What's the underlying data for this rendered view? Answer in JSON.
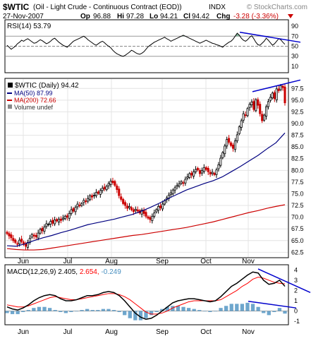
{
  "header": {
    "symbol": "$WTIC",
    "name": "(Oil - Light Crude - Continuous Contract (EOD))",
    "exchange": "INDX",
    "date": "27-Nov-2007",
    "op_label": "Op",
    "op": "96.88",
    "hi_label": "Hi",
    "hi": "97.28",
    "lo_label": "Lo",
    "lo": "94.21",
    "cl_label": "Cl",
    "cl": "94.42",
    "chg_label": "Chg",
    "chg": "-3.28 (-3.36%)",
    "chg_arrow": "down-triangle-icon",
    "brand": "© StockCharts.com"
  },
  "colors": {
    "price_up": "#000000",
    "price_down": "#cc0000",
    "ma50": "#000080",
    "ma200": "#cc0000",
    "trendline": "#0000cc",
    "macd_line": "#000000",
    "signal_line": "#ff0000",
    "histogram": "#4a90c0",
    "rsi_fill": "#2e8b57"
  },
  "chart_data": [
    {
      "type": "line",
      "panel": "RSI",
      "legend": {
        "label": "RSI(14)",
        "value": "53.79"
      },
      "ylim": [
        0,
        100
      ],
      "y_ticks": [
        "90",
        "70",
        "50",
        "30",
        "10"
      ],
      "reference_lines": [
        70,
        30
      ],
      "series": [
        {
          "name": "RSI(14)",
          "values": [
            52,
            48,
            44,
            47,
            50,
            55,
            58,
            62,
            60,
            63,
            65,
            62,
            59,
            56,
            57,
            60,
            63,
            61,
            58,
            55,
            57,
            60,
            64,
            66,
            62,
            58,
            55,
            52,
            50,
            48,
            52,
            56,
            60,
            62,
            64,
            66,
            68,
            70,
            67,
            63,
            60,
            57,
            54,
            52,
            55,
            58,
            60,
            57,
            53,
            50,
            47,
            42,
            38,
            35,
            33,
            31,
            30,
            32,
            35,
            38,
            42,
            40,
            37,
            35,
            34,
            36,
            39,
            44,
            49,
            52,
            55,
            58,
            60,
            62,
            64,
            66,
            68,
            65,
            63,
            60,
            62,
            64,
            66,
            68,
            70,
            72,
            70,
            68,
            66,
            64,
            62,
            60,
            58,
            56,
            58,
            60,
            62,
            60,
            58,
            56,
            55,
            53,
            52,
            50,
            48,
            52,
            55,
            58,
            60,
            64,
            70,
            76,
            72,
            66,
            62,
            60,
            63,
            68,
            71,
            65,
            58,
            53,
            52,
            56,
            60,
            66,
            62,
            57,
            52,
            55,
            60,
            65,
            63,
            58,
            53.79
          ]
        }
      ]
    },
    {
      "type": "candlestick",
      "panel": "Price",
      "legend": [
        {
          "label": "$WTIC (Daily)",
          "value": "94.42"
        },
        {
          "label": "MA(50)",
          "value": "87.99"
        },
        {
          "label": "MA(200)",
          "value": "72.66"
        },
        {
          "label": "Volume undef",
          "value": ""
        }
      ],
      "x_labels": [
        "Jun",
        "Jul",
        "Aug",
        "Sep",
        "Oct",
        "Nov"
      ],
      "ylim": [
        61.5,
        99.5
      ],
      "y_ticks": [
        "97.5",
        "95.0",
        "92.5",
        "90.0",
        "87.5",
        "85.0",
        "82.5",
        "80.0",
        "77.5",
        "75.0",
        "72.5",
        "70.0",
        "67.5",
        "65.0",
        "62.5"
      ],
      "series": [
        {
          "name": "$WTIC (Daily)",
          "values": [
            66.5,
            66.0,
            65.6,
            65.0,
            64.6,
            64.3,
            65.1,
            64.8,
            64.2,
            63.8,
            64.6,
            65.5,
            66.3,
            66.0,
            65.8,
            66.6,
            67.4,
            67.1,
            67.9,
            68.6,
            68.5,
            69.1,
            68.7,
            69.4,
            69.2,
            69.6,
            69.3,
            69.8,
            70.2,
            70.0,
            70.8,
            71.6,
            71.3,
            72.1,
            72.8,
            72.5,
            72.9,
            73.6,
            73.3,
            74.0,
            74.6,
            74.3,
            74.7,
            75.3,
            75.1,
            75.7,
            76.2,
            76.0,
            76.6,
            77.2,
            77.7,
            77.4,
            76.8,
            75.9,
            74.6,
            73.8,
            72.9,
            72.5,
            71.9,
            72.3,
            71.6,
            71.2,
            71.7,
            71.3,
            70.9,
            71.5,
            70.8,
            70.2,
            69.8,
            69.5,
            70.2,
            70.9,
            71.6,
            72.3,
            72.0,
            72.8,
            73.5,
            74.1,
            74.7,
            75.2,
            75.8,
            76.3,
            76.8,
            77.1,
            77.6,
            77.3,
            78.1,
            78.6,
            79.3,
            79.0,
            79.7,
            80.2,
            80.1,
            79.3,
            80.0,
            80.6,
            80.2,
            79.7,
            79.2,
            79.6,
            79.1,
            80.1,
            81.2,
            82.6,
            83.8,
            85.2,
            86.6,
            86.0,
            85.3,
            84.7,
            86.3,
            87.6,
            89.3,
            90.6,
            92.1,
            91.7,
            93.2,
            94.1,
            94.6,
            93.0,
            95.1,
            93.9,
            92.1,
            90.6,
            91.8,
            93.6,
            94.7,
            95.6,
            96.5,
            95.3,
            97.4,
            97.0,
            98.1,
            97.7,
            94.42
          ]
        },
        {
          "name": "MA(50)",
          "values": [
            63.9,
            63.8,
            64.3,
            65.0,
            65.6,
            66.1,
            66.7,
            67.2,
            67.8,
            68.4,
            68.8,
            69.2,
            69.6,
            70.1,
            70.6,
            71.3,
            72.1,
            73.0,
            74.0,
            74.9,
            75.8,
            76.5,
            77.2,
            77.8,
            78.6,
            79.7,
            80.8,
            82.0,
            83.2,
            84.6,
            85.9,
            87.99
          ]
        },
        {
          "name": "MA(200)",
          "values": [
            63.3,
            63.1,
            63.0,
            63.0,
            63.1,
            63.4,
            63.7,
            64.0,
            64.3,
            64.6,
            64.9,
            65.2,
            65.5,
            65.8,
            66.1,
            66.3,
            66.6,
            66.9,
            67.2,
            67.5,
            67.8,
            68.2,
            68.6,
            69.0,
            69.5,
            70.0,
            70.5,
            71.0,
            71.4,
            71.9,
            72.3,
            72.66
          ]
        }
      ]
    },
    {
      "type": "line",
      "panel": "MACD",
      "legend": {
        "label": "MACD(12,26,9)",
        "macd": "2.405",
        "signal": "2.654",
        "histogram": "-0.249"
      },
      "x_labels": [
        "Jun",
        "Jul",
        "Aug",
        "Sep",
        "Oct",
        "Nov"
      ],
      "ylim": [
        -1.2,
        4.3
      ],
      "y_ticks": [
        "4",
        "3",
        "2",
        "1",
        "0",
        "-1"
      ],
      "series": [
        {
          "name": "MACD",
          "values": [
            0.4,
            0.2,
            0.1,
            0.3,
            0.6,
            1.0,
            1.3,
            1.5,
            1.6,
            1.5,
            1.2,
            1.0,
            1.0,
            1.1,
            1.3,
            1.5,
            1.5,
            1.6,
            1.8,
            1.9,
            1.8,
            1.5,
            1.0,
            0.4,
            -0.2,
            -0.6,
            -0.8,
            -0.7,
            -0.4,
            0.0,
            0.4,
            0.8,
            1.0,
            1.1,
            1.2,
            1.2,
            1.1,
            1.0,
            0.9,
            1.0,
            1.4,
            1.9,
            2.4,
            2.7,
            3.1,
            3.5,
            3.8,
            3.7,
            3.0,
            2.6,
            2.7,
            3.0,
            2.405
          ]
        },
        {
          "name": "Signal",
          "values": [
            0.6,
            0.5,
            0.4,
            0.4,
            0.5,
            0.7,
            0.9,
            1.1,
            1.3,
            1.4,
            1.3,
            1.2,
            1.1,
            1.1,
            1.2,
            1.3,
            1.4,
            1.5,
            1.6,
            1.7,
            1.7,
            1.6,
            1.4,
            1.1,
            0.7,
            0.3,
            -0.1,
            -0.3,
            -0.3,
            -0.2,
            0.0,
            0.3,
            0.5,
            0.7,
            0.9,
            1.0,
            1.0,
            1.0,
            1.0,
            1.0,
            1.1,
            1.4,
            1.7,
            2.0,
            2.4,
            2.7,
            3.1,
            3.3,
            3.2,
            3.0,
            2.8,
            2.7,
            2.654
          ]
        },
        {
          "name": "Histogram",
          "values": [
            -0.2,
            -0.3,
            -0.3,
            -0.1,
            0.1,
            0.3,
            0.4,
            0.4,
            0.3,
            0.1,
            -0.1,
            -0.2,
            -0.1,
            0.0,
            0.1,
            0.2,
            0.1,
            0.1,
            0.2,
            0.2,
            0.1,
            -0.1,
            -0.4,
            -0.7,
            -0.9,
            -0.9,
            -0.7,
            -0.4,
            -0.1,
            0.2,
            0.4,
            0.5,
            0.5,
            0.4,
            0.3,
            0.2,
            0.1,
            0.0,
            -0.1,
            0.0,
            0.3,
            0.5,
            0.7,
            0.7,
            0.7,
            0.8,
            0.7,
            0.4,
            -0.2,
            -0.4,
            -0.1,
            0.3,
            -0.249
          ]
        }
      ]
    }
  ]
}
